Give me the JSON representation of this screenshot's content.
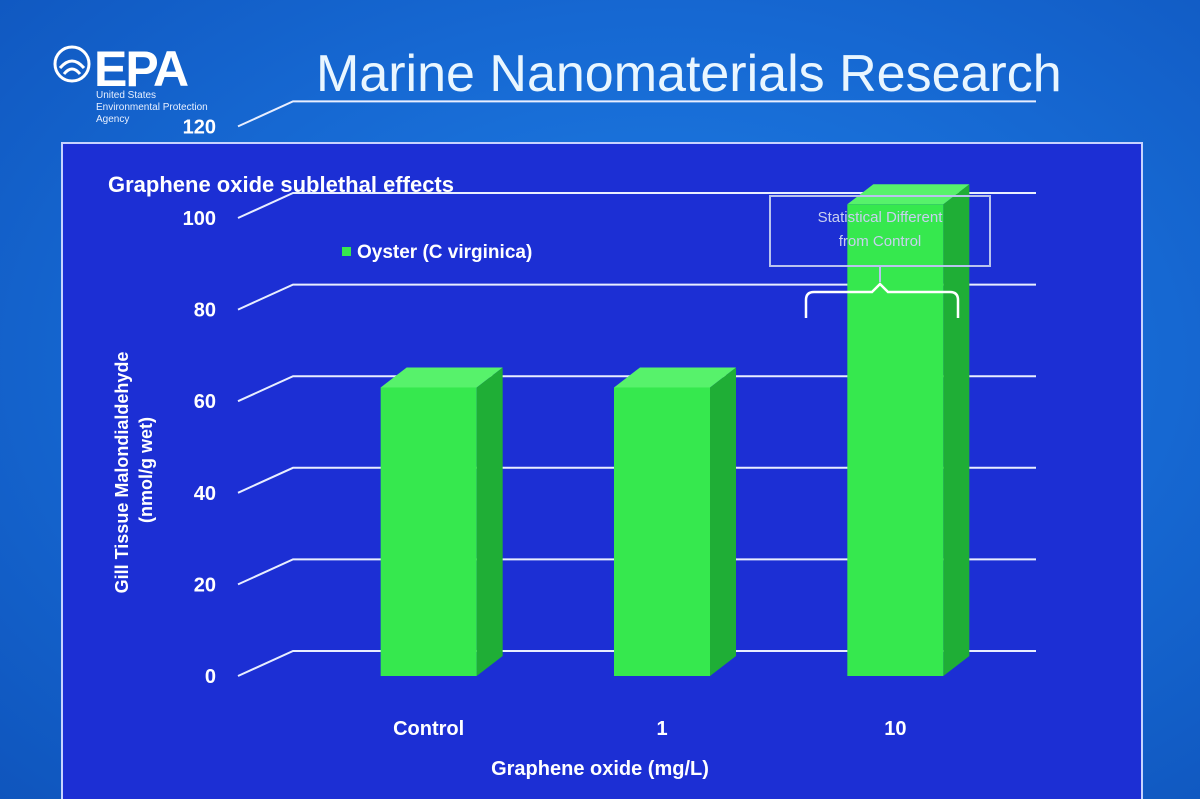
{
  "slide": {
    "title": "Marine Nanomaterials Research",
    "logo": {
      "mark": "EPA",
      "agency_lines": [
        "United States",
        "Environmental Protection",
        "Agency"
      ]
    }
  },
  "colors": {
    "background": "#1668d2",
    "panel": "#1c2fd4",
    "bar": "#36e84e",
    "bar_side": "#1fae36",
    "bar_top": "#57f26b"
  },
  "chart_data": {
    "type": "bar",
    "title": "Graphene oxide sublethal effects",
    "categories": [
      "Control",
      "1",
      "10"
    ],
    "series": [
      {
        "name": "Oyster (C virginica)",
        "values": [
          63,
          63,
          103
        ]
      }
    ],
    "xlabel": "Graphene oxide (mg/L)",
    "ylabel_lines": [
      "Gill Tissue Malondialdehyde",
      "(nmol/g wet)"
    ],
    "ylim": [
      0,
      120
    ],
    "yticks": [
      "0",
      "20",
      "40",
      "60",
      "80",
      "100",
      "120"
    ],
    "grid": true,
    "legend": "top-left",
    "annotation": {
      "text_lines": [
        "Statistical Different",
        "from Control"
      ],
      "target_category": "10"
    }
  }
}
